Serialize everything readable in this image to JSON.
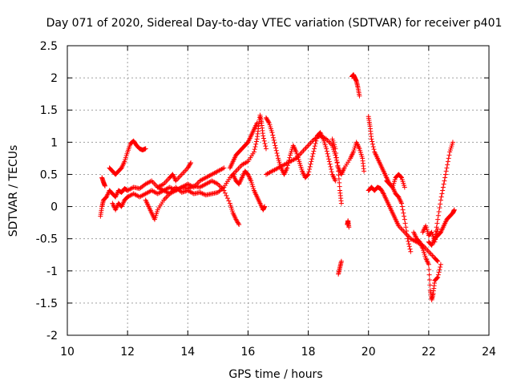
{
  "chart_data": {
    "type": "scatter",
    "title": "Day 071 of 2020, Sidereal Day-to-day VTEC variation (SDTVAR) for receiver p401",
    "xlabel": "GPS time / hours",
    "ylabel": "SDTVAR / TECUs",
    "xlim": [
      10,
      24
    ],
    "ylim": [
      -2,
      2.5
    ],
    "xticks": [
      10,
      12,
      14,
      16,
      18,
      20,
      22,
      24
    ],
    "yticks": [
      -2,
      -1.5,
      -1,
      -0.5,
      0,
      0.5,
      1,
      1.5,
      2,
      2.5
    ],
    "xtick_labels": [
      "10",
      "12",
      "14",
      "16",
      "18",
      "20",
      "22",
      "24"
    ],
    "ytick_labels": [
      "-2",
      "-1.5",
      "-1",
      "-0.5",
      "0",
      "0.5",
      "1",
      "1.5",
      "2",
      "2.5"
    ],
    "grid": true,
    "marker": "+",
    "series": [
      {
        "name": "SDTVAR",
        "color": "#ff0000",
        "segments": [
          [
            [
              11.15,
              0.45
            ],
            [
              11.2,
              0.38
            ],
            [
              11.25,
              0.32
            ]
          ],
          [
            [
              11.1,
              -0.15
            ],
            [
              11.15,
              0.0
            ],
            [
              11.2,
              0.1
            ],
            [
              11.3,
              0.15
            ],
            [
              11.4,
              0.25
            ],
            [
              11.5,
              0.2
            ],
            [
              11.6,
              0.15
            ],
            [
              11.7,
              0.25
            ],
            [
              11.8,
              0.22
            ],
            [
              11.9,
              0.28
            ],
            [
              12.0,
              0.25
            ],
            [
              12.2,
              0.3
            ],
            [
              12.4,
              0.28
            ],
            [
              12.6,
              0.35
            ],
            [
              12.8,
              0.4
            ],
            [
              13.0,
              0.3
            ],
            [
              13.2,
              0.35
            ],
            [
              13.4,
              0.45
            ],
            [
              13.5,
              0.5
            ],
            [
              13.6,
              0.4
            ],
            [
              13.8,
              0.5
            ],
            [
              14.0,
              0.6
            ],
            [
              14.1,
              0.68
            ]
          ],
          [
            [
              11.4,
              0.6
            ],
            [
              11.5,
              0.55
            ],
            [
              11.6,
              0.5
            ],
            [
              11.7,
              0.55
            ],
            [
              11.8,
              0.6
            ],
            [
              11.9,
              0.7
            ],
            [
              12.0,
              0.85
            ],
            [
              12.1,
              0.98
            ],
            [
              12.2,
              1.02
            ],
            [
              12.3,
              0.95
            ],
            [
              12.4,
              0.9
            ],
            [
              12.5,
              0.88
            ],
            [
              12.6,
              0.9
            ]
          ],
          [
            [
              11.5,
              0.05
            ],
            [
              11.6,
              -0.05
            ],
            [
              11.7,
              0.05
            ],
            [
              11.8,
              0.0
            ],
            [
              11.9,
              0.1
            ],
            [
              12.0,
              0.15
            ],
            [
              12.2,
              0.2
            ],
            [
              12.4,
              0.15
            ],
            [
              12.6,
              0.2
            ],
            [
              12.8,
              0.25
            ],
            [
              13.0,
              0.2
            ],
            [
              13.2,
              0.25
            ],
            [
              13.4,
              0.3
            ],
            [
              13.6,
              0.25
            ],
            [
              13.8,
              0.3
            ],
            [
              14.0,
              0.35
            ],
            [
              14.2,
              0.3
            ],
            [
              14.4,
              0.4
            ],
            [
              14.6,
              0.45
            ],
            [
              14.8,
              0.5
            ],
            [
              15.0,
              0.55
            ],
            [
              15.2,
              0.6
            ]
          ],
          [
            [
              12.6,
              0.1
            ],
            [
              12.7,
              0.0
            ],
            [
              12.8,
              -0.1
            ],
            [
              12.9,
              -0.2
            ],
            [
              13.0,
              -0.05
            ],
            [
              13.2,
              0.1
            ],
            [
              13.4,
              0.2
            ],
            [
              13.6,
              0.25
            ],
            [
              13.8,
              0.3
            ],
            [
              14.0,
              0.28
            ],
            [
              14.2,
              0.32
            ],
            [
              14.4,
              0.3
            ],
            [
              14.6,
              0.35
            ],
            [
              14.8,
              0.4
            ],
            [
              15.0,
              0.35
            ],
            [
              15.2,
              0.25
            ],
            [
              15.4,
              0.05
            ],
            [
              15.5,
              -0.1
            ],
            [
              15.6,
              -0.2
            ],
            [
              15.7,
              -0.28
            ]
          ],
          [
            [
              13.0,
              0.3
            ],
            [
              13.2,
              0.25
            ],
            [
              13.4,
              0.2
            ],
            [
              13.6,
              0.3
            ],
            [
              13.8,
              0.22
            ],
            [
              14.0,
              0.25
            ],
            [
              14.2,
              0.2
            ],
            [
              14.4,
              0.22
            ],
            [
              14.6,
              0.18
            ],
            [
              14.8,
              0.2
            ],
            [
              15.0,
              0.22
            ],
            [
              15.2,
              0.3
            ],
            [
              15.4,
              0.45
            ],
            [
              15.6,
              0.55
            ],
            [
              15.8,
              0.65
            ],
            [
              16.0,
              0.7
            ],
            [
              16.2,
              0.85
            ],
            [
              16.3,
              1.05
            ],
            [
              16.35,
              1.25
            ],
            [
              16.4,
              1.42
            ],
            [
              16.45,
              1.3
            ],
            [
              16.5,
              1.1
            ],
            [
              16.6,
              0.9
            ]
          ],
          [
            [
              15.4,
              0.6
            ],
            [
              15.5,
              0.7
            ],
            [
              15.6,
              0.8
            ],
            [
              15.7,
              0.85
            ],
            [
              15.8,
              0.9
            ],
            [
              15.9,
              0.95
            ],
            [
              16.0,
              1.0
            ],
            [
              16.1,
              1.1
            ],
            [
              16.2,
              1.2
            ],
            [
              16.3,
              1.3
            ]
          ],
          [
            [
              15.5,
              0.5
            ],
            [
              15.6,
              0.4
            ],
            [
              15.7,
              0.35
            ],
            [
              15.8,
              0.45
            ],
            [
              15.9,
              0.55
            ],
            [
              16.0,
              0.5
            ],
            [
              16.1,
              0.4
            ],
            [
              16.2,
              0.25
            ],
            [
              16.3,
              0.15
            ],
            [
              16.4,
              0.05
            ],
            [
              16.5,
              -0.05
            ],
            [
              16.55,
              0.0
            ]
          ],
          [
            [
              16.6,
              1.38
            ],
            [
              16.7,
              1.3
            ],
            [
              16.8,
              1.15
            ],
            [
              16.9,
              0.95
            ],
            [
              17.0,
              0.75
            ],
            [
              17.1,
              0.6
            ],
            [
              17.2,
              0.5
            ],
            [
              17.3,
              0.6
            ],
            [
              17.4,
              0.8
            ],
            [
              17.5,
              0.95
            ],
            [
              17.6,
              0.85
            ],
            [
              17.7,
              0.7
            ],
            [
              17.8,
              0.55
            ],
            [
              17.9,
              0.45
            ],
            [
              18.0,
              0.5
            ],
            [
              18.1,
              0.7
            ],
            [
              18.2,
              0.9
            ],
            [
              18.3,
              1.1
            ],
            [
              18.4,
              1.15
            ],
            [
              18.5,
              1.05
            ],
            [
              18.6,
              0.9
            ],
            [
              18.7,
              0.7
            ],
            [
              18.8,
              0.5
            ],
            [
              18.9,
              0.4
            ]
          ],
          [
            [
              16.6,
              0.5
            ],
            [
              16.8,
              0.55
            ],
            [
              17.0,
              0.6
            ],
            [
              17.2,
              0.65
            ],
            [
              17.4,
              0.7
            ],
            [
              17.6,
              0.75
            ],
            [
              17.8,
              0.85
            ],
            [
              18.0,
              0.95
            ],
            [
              18.2,
              1.05
            ],
            [
              18.4,
              1.1
            ],
            [
              18.6,
              1.05
            ],
            [
              18.8,
              0.95
            ],
            [
              18.9,
              0.8
            ],
            [
              19.0,
              0.6
            ],
            [
              19.1,
              0.5
            ],
            [
              19.2,
              0.6
            ],
            [
              19.4,
              0.75
            ],
            [
              19.5,
              0.85
            ],
            [
              19.6,
              1.0
            ],
            [
              19.7,
              0.9
            ],
            [
              19.8,
              0.75
            ],
            [
              19.85,
              0.55
            ]
          ],
          [
            [
              18.8,
              1.05
            ],
            [
              18.9,
              0.9
            ],
            [
              19.0,
              0.55
            ],
            [
              19.05,
              0.25
            ],
            [
              19.1,
              0.05
            ]
          ],
          [
            [
              19.0,
              -1.05
            ],
            [
              19.05,
              -0.95
            ],
            [
              19.1,
              -0.85
            ]
          ],
          [
            [
              19.3,
              -0.28
            ],
            [
              19.32,
              -0.22
            ],
            [
              19.35,
              -0.32
            ]
          ],
          [
            [
              19.45,
              2.02
            ],
            [
              19.5,
              2.05
            ],
            [
              19.55,
              2.0
            ],
            [
              19.6,
              1.95
            ],
            [
              19.65,
              1.85
            ],
            [
              19.7,
              1.72
            ]
          ],
          [
            [
              20.0,
              1.4
            ],
            [
              20.05,
              1.25
            ],
            [
              20.1,
              1.05
            ],
            [
              20.2,
              0.85
            ],
            [
              20.3,
              0.75
            ],
            [
              20.4,
              0.65
            ],
            [
              20.5,
              0.55
            ],
            [
              20.6,
              0.45
            ],
            [
              20.7,
              0.35
            ],
            [
              20.8,
              0.3
            ],
            [
              20.9,
              0.2
            ],
            [
              21.0,
              0.15
            ],
            [
              21.1,
              0.05
            ],
            [
              21.2,
              -0.2
            ],
            [
              21.3,
              -0.5
            ],
            [
              21.4,
              -0.7
            ]
          ],
          [
            [
              20.0,
              0.25
            ],
            [
              20.1,
              0.3
            ],
            [
              20.2,
              0.25
            ],
            [
              20.3,
              0.3
            ],
            [
              20.4,
              0.28
            ],
            [
              20.5,
              0.2
            ],
            [
              20.6,
              0.1
            ],
            [
              20.7,
              0.0
            ],
            [
              20.8,
              -0.1
            ],
            [
              20.9,
              -0.2
            ],
            [
              21.0,
              -0.3
            ],
            [
              21.2,
              -0.4
            ],
            [
              21.4,
              -0.5
            ],
            [
              21.6,
              -0.55
            ],
            [
              21.8,
              -0.6
            ],
            [
              22.0,
              -0.7
            ],
            [
              22.2,
              -0.8
            ],
            [
              22.3,
              -0.85
            ]
          ],
          [
            [
              20.6,
              0.4
            ],
            [
              20.7,
              0.35
            ],
            [
              20.8,
              0.3
            ],
            [
              20.9,
              0.45
            ],
            [
              21.0,
              0.5
            ],
            [
              21.1,
              0.45
            ],
            [
              21.2,
              0.3
            ]
          ],
          [
            [
              21.5,
              -0.4
            ],
            [
              21.6,
              -0.5
            ],
            [
              21.7,
              -0.55
            ],
            [
              21.8,
              -0.65
            ],
            [
              21.9,
              -0.8
            ],
            [
              22.0,
              -0.9
            ],
            [
              22.05,
              -1.3
            ],
            [
              22.1,
              -1.45
            ],
            [
              22.15,
              -1.35
            ],
            [
              22.2,
              -1.15
            ],
            [
              22.3,
              -1.1
            ],
            [
              22.4,
              -0.9
            ]
          ],
          [
            [
              22.0,
              -0.55
            ],
            [
              22.1,
              -0.6
            ],
            [
              22.2,
              -0.5
            ],
            [
              22.3,
              -0.45
            ],
            [
              22.4,
              -0.4
            ],
            [
              22.5,
              -0.3
            ],
            [
              22.6,
              -0.2
            ],
            [
              22.7,
              -0.15
            ],
            [
              22.8,
              -0.1
            ],
            [
              22.85,
              -0.05
            ]
          ],
          [
            [
              22.2,
              -0.5
            ],
            [
              22.3,
              -0.2
            ],
            [
              22.4,
              0.1
            ],
            [
              22.5,
              0.35
            ],
            [
              22.6,
              0.6
            ],
            [
              22.7,
              0.85
            ],
            [
              22.8,
              1.0
            ]
          ],
          [
            [
              21.8,
              -0.4
            ],
            [
              21.9,
              -0.3
            ],
            [
              22.0,
              -0.45
            ],
            [
              22.1,
              -0.4
            ],
            [
              22.2,
              -0.55
            ],
            [
              22.3,
              -0.35
            ]
          ]
        ]
      }
    ]
  }
}
